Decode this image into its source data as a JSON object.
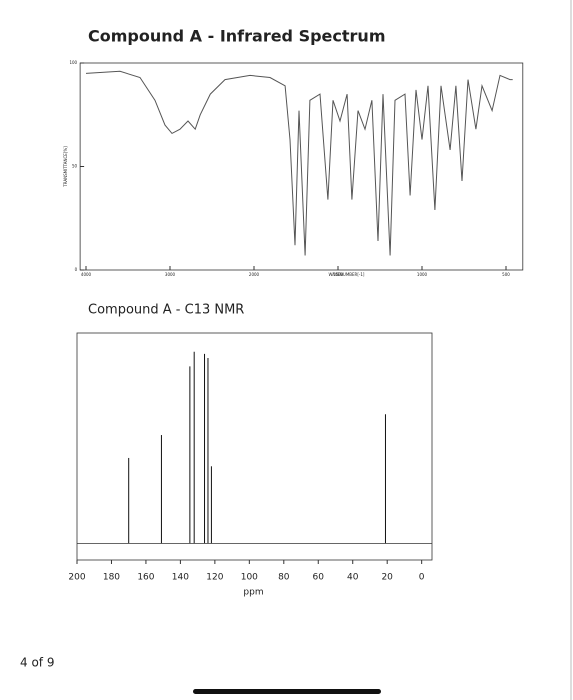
{
  "chart_data": [
    {
      "type": "line",
      "title": "Compound A - Infrared Spectrum",
      "ylabel": "TRANSMITTANCE[%]",
      "xlabel": "WAVENUMBER[-1]",
      "x": [
        4000,
        3595,
        3357,
        3179,
        3060,
        2976,
        2881,
        2786,
        2700,
        2640,
        2520,
        2345,
        2048,
        1905,
        1815,
        1786,
        1756,
        1732,
        1696,
        1667,
        1607,
        1560,
        1530,
        1488,
        1446,
        1417,
        1381,
        1339,
        1298,
        1262,
        1232,
        1190,
        1161,
        1101,
        1071,
        1036,
        1000,
        964,
        923,
        887,
        833,
        798,
        762,
        726,
        679,
        643,
        583,
        536,
        476,
        460
      ],
      "values": [
        95,
        96,
        93,
        82,
        70,
        66,
        68,
        72,
        68,
        75,
        85,
        92,
        94,
        93,
        89,
        63,
        12,
        77,
        7,
        82,
        85,
        34,
        82,
        72,
        85,
        34,
        77,
        68,
        82,
        14,
        85,
        7,
        82,
        85,
        36,
        87,
        63,
        89,
        29,
        89,
        58,
        89,
        43,
        92,
        68,
        89,
        77,
        94,
        92,
        92
      ],
      "color": "#555555",
      "xlim": [
        4070,
        400
      ],
      "xticks": [
        4000,
        3000,
        2000,
        1500,
        1000,
        500
      ],
      "ylim": [
        0,
        100
      ],
      "yticks": [
        0,
        50,
        100
      ]
    },
    {
      "type": "stem",
      "title": "Compound A - C13 NMR",
      "xlabel": "ppm",
      "x": [
        170,
        151,
        134.5,
        132,
        126,
        124,
        122,
        21
      ],
      "values": [
        41,
        52,
        85,
        92,
        91,
        89,
        37,
        62
      ],
      "color": "#111111",
      "xlim": [
        200,
        -6
      ],
      "xticks": [
        200,
        180,
        160,
        140,
        120,
        100,
        80,
        60,
        40,
        20,
        0
      ],
      "ylim": [
        -8,
        101
      ]
    }
  ],
  "page_indicator": "4 of 9"
}
